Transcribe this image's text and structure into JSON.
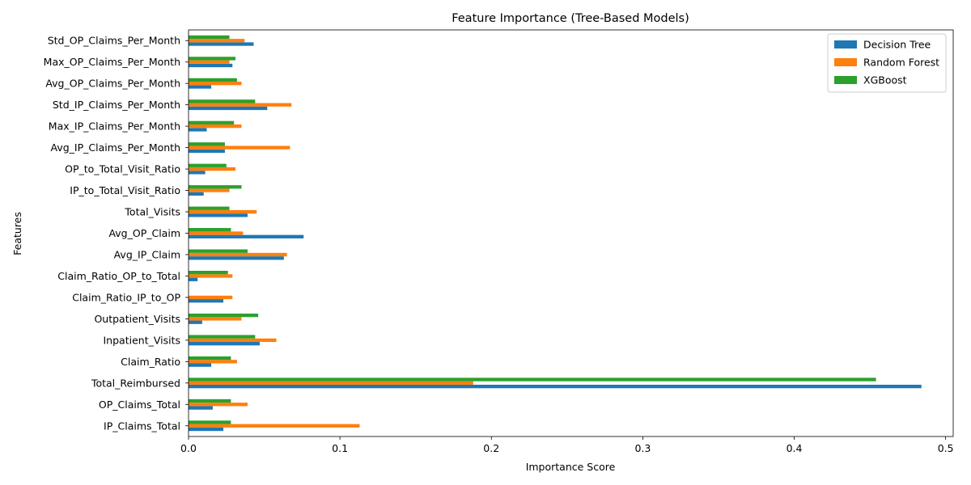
{
  "chart_data": {
    "type": "bar",
    "orientation": "horizontal",
    "title": "Feature Importance (Tree-Based Models)",
    "xlabel": "Importance Score",
    "ylabel": "Features",
    "xlim": [
      0,
      0.505
    ],
    "xticks": [
      0.0,
      0.1,
      0.2,
      0.3,
      0.4,
      0.5
    ],
    "xtick_labels": [
      "0.0",
      "0.1",
      "0.2",
      "0.3",
      "0.4",
      "0.5"
    ],
    "grid": false,
    "legend_position": "upper right",
    "categories": [
      "Std_OP_Claims_Per_Month",
      "Max_OP_Claims_Per_Month",
      "Avg_OP_Claims_Per_Month",
      "Std_IP_Claims_Per_Month",
      "Max_IP_Claims_Per_Month",
      "Avg_IP_Claims_Per_Month",
      "OP_to_Total_Visit_Ratio",
      "IP_to_Total_Visit_Ratio",
      "Total_Visits",
      "Avg_OP_Claim",
      "Avg_IP_Claim",
      "Claim_Ratio_OP_to_Total",
      "Claim_Ratio_IP_to_OP",
      "Outpatient_Visits",
      "Inpatient_Visits",
      "Claim_Ratio",
      "Total_Reimbursed",
      "OP_Claims_Total",
      "IP_Claims_Total"
    ],
    "series": [
      {
        "name": "Decision Tree",
        "color": "#1f77b4",
        "values": [
          0.043,
          0.029,
          0.015,
          0.052,
          0.012,
          0.024,
          0.011,
          0.01,
          0.039,
          0.076,
          0.063,
          0.006,
          0.023,
          0.009,
          0.047,
          0.015,
          0.484,
          0.016,
          0.023
        ]
      },
      {
        "name": "Random Forest",
        "color": "#ff7f0e",
        "values": [
          0.037,
          0.027,
          0.035,
          0.068,
          0.035,
          0.067,
          0.031,
          0.027,
          0.045,
          0.036,
          0.065,
          0.029,
          0.029,
          0.035,
          0.058,
          0.032,
          0.188,
          0.039,
          0.113
        ]
      },
      {
        "name": "XGBoost",
        "color": "#2ca02c",
        "values": [
          0.027,
          0.031,
          0.032,
          0.044,
          0.03,
          0.024,
          0.025,
          0.035,
          0.027,
          0.028,
          0.039,
          0.026,
          0.0,
          0.046,
          0.044,
          0.028,
          0.454,
          0.028,
          0.028
        ]
      }
    ]
  }
}
